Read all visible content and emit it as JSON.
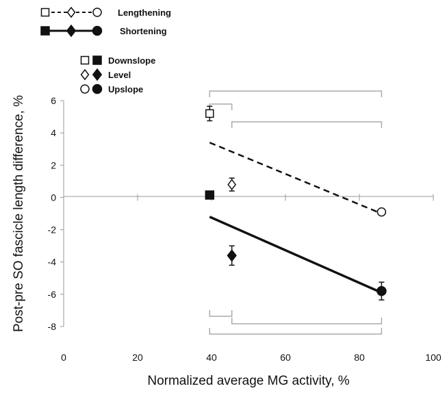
{
  "chart_data": {
    "type": "scatter",
    "xlabel": "Normalized average MG activity, %",
    "ylabel": "Post-pre SO fascicle length difference, %",
    "xlim": [
      0,
      100
    ],
    "ylim": [
      -8,
      6
    ],
    "x_ticks": [
      "0",
      "20",
      "40",
      "60",
      "80",
      "100"
    ],
    "y_ticks": [
      "6",
      "4",
      "2",
      "0",
      "-2",
      "-4",
      "-6",
      "-8"
    ],
    "grid": false,
    "legend": {
      "contraction": [
        {
          "label": "Lengthening",
          "line": "dashed",
          "fill": "open"
        },
        {
          "label": "Shortening",
          "line": "solid",
          "fill": "filled"
        }
      ],
      "condition": [
        {
          "label": "Downslope",
          "marker": "square"
        },
        {
          "label": "Level",
          "marker": "diamond"
        },
        {
          "label": "Upslope",
          "marker": "circle"
        }
      ]
    },
    "series": [
      {
        "name": "Lengthening",
        "points": [
          {
            "condition": "Downslope",
            "x": 39.5,
            "y": 5.2,
            "err": 0.45
          },
          {
            "condition": "Level",
            "x": 45.5,
            "y": 0.8,
            "err": 0.4
          },
          {
            "condition": "Upslope",
            "x": 86,
            "y": -0.9,
            "err": 0.1
          }
        ],
        "fit_line": [
          [
            39.5,
            3.4
          ],
          [
            86,
            -1.0
          ]
        ]
      },
      {
        "name": "Shortening",
        "points": [
          {
            "condition": "Downslope",
            "x": 39.5,
            "y": 0.15,
            "err": 0.15
          },
          {
            "condition": "Level",
            "x": 45.5,
            "y": -3.6,
            "err": 0.6
          },
          {
            "condition": "Upslope",
            "x": 86,
            "y": -5.8,
            "err": 0.55
          }
        ],
        "fit_line": [
          [
            39.5,
            -1.2
          ],
          [
            86,
            -5.9
          ]
        ]
      }
    ],
    "brackets_top": [
      [
        39.5,
        86
      ],
      [
        39.5,
        45.5
      ],
      [
        45.5,
        86
      ]
    ],
    "brackets_bottom": [
      [
        39.5,
        45.5
      ],
      [
        45.5,
        86
      ],
      [
        39.5,
        86
      ]
    ]
  }
}
